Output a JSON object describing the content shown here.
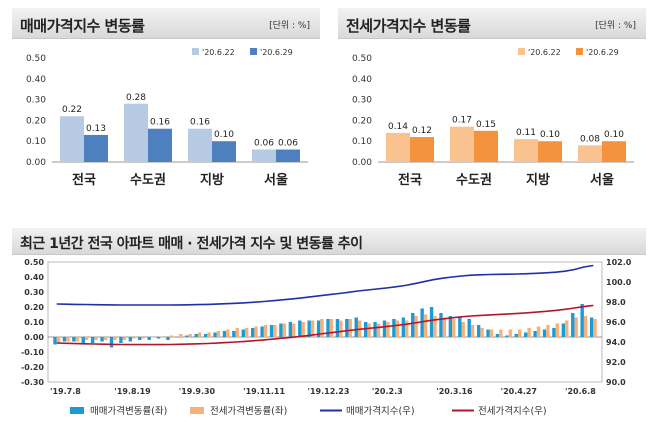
{
  "panels": {
    "sale": {
      "title": "매매가격지수 변동률",
      "unit": "[단위 : %]"
    },
    "jeonse": {
      "title": "전세가격지수 변동률",
      "unit": "[단위 : %]"
    },
    "trend": {
      "title": "최근 1년간 전국 아파트 매매 · 전세가격 지수 및 변동률 추이"
    }
  },
  "colors": {
    "sale_prev": "#b7cae4",
    "sale_curr": "#4e7fbe",
    "jeonse_prev": "#f9c28e",
    "jeonse_curr": "#f5923e",
    "trend_sale_bar": "#1a9ad6",
    "trend_jeonse_bar": "#f6b07a",
    "trend_sale_line": "#1f2fa8",
    "trend_jeonse_line": "#b3162b"
  },
  "chart_data": [
    {
      "type": "bar",
      "title": "매매가격지수 변동률",
      "categories": [
        "전국",
        "수도권",
        "지방",
        "서울"
      ],
      "series": [
        {
          "name": "'20.6.22",
          "values": [
            0.22,
            0.28,
            0.16,
            0.06
          ]
        },
        {
          "name": "'20.6.29",
          "values": [
            0.13,
            0.16,
            0.1,
            0.06
          ]
        }
      ],
      "yticks": [
        "0.00",
        "0.10",
        "0.20",
        "0.30",
        "0.40",
        "0.50"
      ],
      "ylim": [
        0,
        0.5
      ],
      "data_labels": true
    },
    {
      "type": "bar",
      "title": "전세가격지수 변동률",
      "categories": [
        "전국",
        "수도권",
        "지방",
        "서울"
      ],
      "series": [
        {
          "name": "'20.6.22",
          "values": [
            0.14,
            0.17,
            0.11,
            0.08
          ]
        },
        {
          "name": "'20.6.29",
          "values": [
            0.12,
            0.15,
            0.1,
            0.1
          ]
        }
      ],
      "yticks": [
        "0.00",
        "0.10",
        "0.20",
        "0.30",
        "0.40",
        "0.50"
      ],
      "ylim": [
        0,
        0.5
      ],
      "data_labels": true
    },
    {
      "type": "bar",
      "title": "최근 1년간 전국 아파트 매매 · 전세가격 지수 및 변동률 추이",
      "x_tick_labels": [
        "'19.7.8",
        "'19.8.19",
        "'19.9.30",
        "'19.11.11",
        "'19.12.23",
        "'20.2.3",
        "'20.3.16",
        "'20.4.27",
        "'20.6.8"
      ],
      "y_left": {
        "ticks": [
          "-0.30",
          "-0.20",
          "-0.10",
          "0.00",
          "0.10",
          "0.20",
          "0.30",
          "0.40",
          "0.50"
        ],
        "range": [
          -0.3,
          0.5
        ]
      },
      "y_right": {
        "ticks": [
          "90.0",
          "92.0",
          "94.0",
          "96.0",
          "98.0",
          "100.0",
          "102.0"
        ],
        "range": [
          90,
          102
        ]
      },
      "series": [
        {
          "name": "매매가격변동률(좌)",
          "kind": "bar",
          "axis": "left",
          "values": [
            -0.05,
            -0.03,
            -0.03,
            -0.04,
            -0.04,
            -0.03,
            -0.07,
            -0.04,
            -0.03,
            -0.02,
            -0.02,
            -0.01,
            -0.02,
            0.0,
            0.01,
            0.02,
            0.02,
            0.03,
            0.04,
            0.04,
            0.05,
            0.06,
            0.07,
            0.08,
            0.09,
            0.1,
            0.11,
            0.11,
            0.11,
            0.12,
            0.12,
            0.12,
            0.13,
            0.1,
            0.1,
            0.11,
            0.12,
            0.13,
            0.16,
            0.19,
            0.2,
            0.16,
            0.14,
            0.13,
            0.12,
            0.08,
            0.05,
            0.02,
            0.01,
            0.02,
            0.03,
            0.04,
            0.05,
            0.06,
            0.09,
            0.16,
            0.22,
            0.13
          ]
        },
        {
          "name": "전세가격변동률(좌)",
          "kind": "bar",
          "axis": "left",
          "values": [
            -0.04,
            -0.03,
            -0.03,
            -0.02,
            -0.02,
            -0.02,
            -0.02,
            -0.02,
            -0.01,
            -0.01,
            0.0,
            0.0,
            0.01,
            0.02,
            0.02,
            0.03,
            0.03,
            0.04,
            0.05,
            0.06,
            0.06,
            0.07,
            0.08,
            0.08,
            0.09,
            0.09,
            0.1,
            0.11,
            0.12,
            0.12,
            0.11,
            0.12,
            0.11,
            0.09,
            0.09,
            0.1,
            0.11,
            0.11,
            0.14,
            0.15,
            0.14,
            0.13,
            0.12,
            0.1,
            0.08,
            0.06,
            0.05,
            0.05,
            0.05,
            0.05,
            0.06,
            0.07,
            0.08,
            0.09,
            0.11,
            0.13,
            0.14,
            0.12
          ]
        },
        {
          "name": "매매가격지수(우)",
          "kind": "line",
          "axis": "right",
          "values": [
            97.8,
            97.78,
            97.76,
            97.75,
            97.73,
            97.72,
            97.71,
            97.7,
            97.7,
            97.7,
            97.7,
            97.7,
            97.7,
            97.71,
            97.72,
            97.74,
            97.76,
            97.79,
            97.83,
            97.87,
            97.92,
            97.98,
            98.05,
            98.13,
            98.22,
            98.31,
            98.41,
            98.52,
            98.63,
            98.74,
            98.85,
            98.97,
            99.1,
            99.2,
            99.3,
            99.4,
            99.52,
            99.65,
            99.83,
            100.03,
            100.23,
            100.38,
            100.5,
            100.6,
            100.68,
            100.72,
            100.75,
            100.77,
            100.78,
            100.8,
            100.83,
            100.87,
            100.92,
            100.98,
            101.08,
            101.25,
            101.5,
            101.65
          ]
        },
        {
          "name": "전세가격지수(우)",
          "kind": "line",
          "axis": "right",
          "values": [
            93.9,
            93.87,
            93.84,
            93.82,
            93.8,
            93.78,
            93.76,
            93.75,
            93.74,
            93.74,
            93.74,
            93.74,
            93.75,
            93.77,
            93.79,
            93.82,
            93.85,
            93.89,
            93.94,
            94.0,
            94.06,
            94.13,
            94.21,
            94.29,
            94.38,
            94.47,
            94.57,
            94.68,
            94.8,
            94.92,
            95.03,
            95.15,
            95.26,
            95.35,
            95.44,
            95.54,
            95.65,
            95.76,
            95.9,
            96.05,
            96.19,
            96.31,
            96.42,
            96.52,
            96.6,
            96.66,
            96.71,
            96.76,
            96.81,
            96.86,
            96.92,
            96.99,
            97.07,
            97.16,
            97.27,
            97.4,
            97.54,
            97.66
          ]
        }
      ],
      "grid": false,
      "legend": "bottom"
    }
  ]
}
